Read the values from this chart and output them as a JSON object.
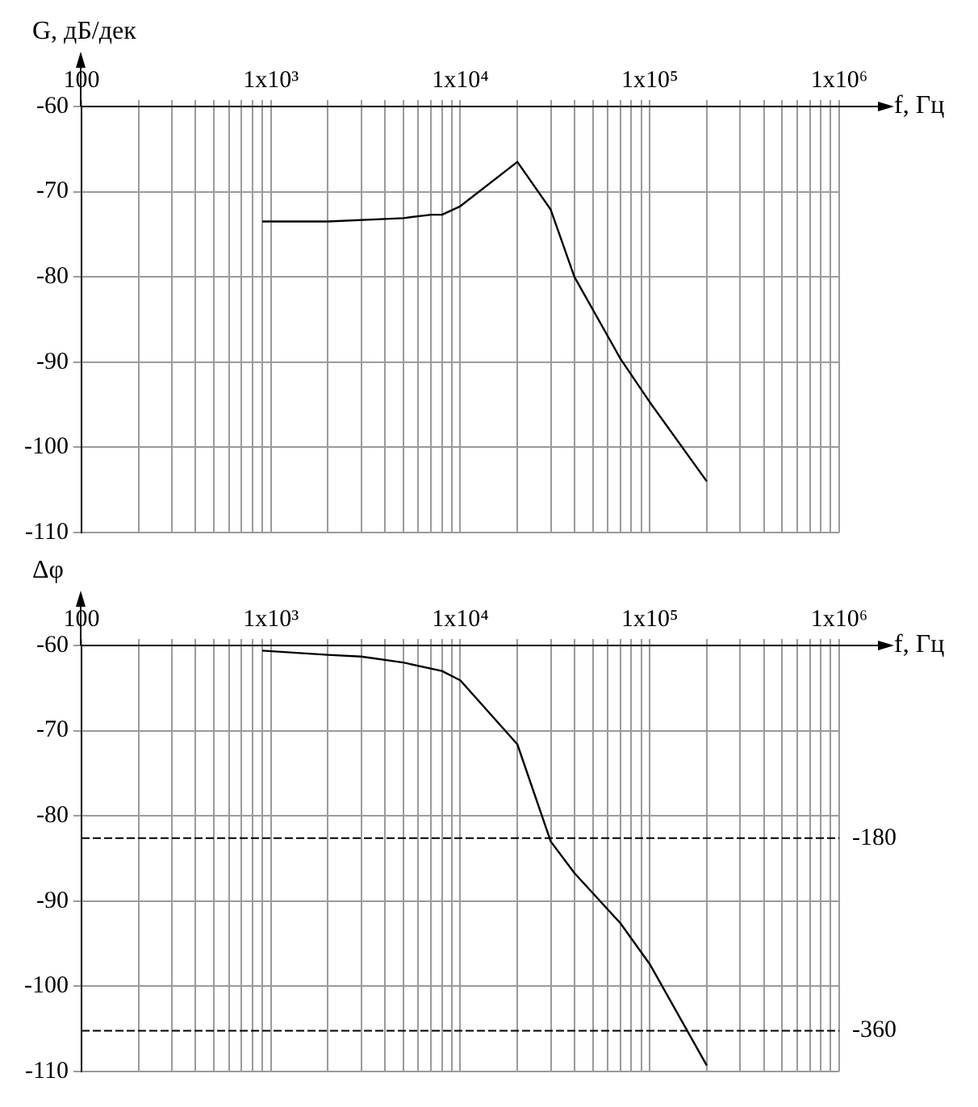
{
  "chart_data": [
    {
      "type": "line",
      "ylabel": "G, дБ/дек",
      "xlabel": "f, Гц",
      "log": "x",
      "grid": true,
      "xlim": [
        100,
        1000000
      ],
      "ylim": [
        -110,
        -60
      ],
      "xticks": [
        {
          "value": 100,
          "label": "100"
        },
        {
          "value": 200,
          "label": null
        },
        {
          "value": 300,
          "label": null
        },
        {
          "value": 400,
          "label": null
        },
        {
          "value": 500,
          "label": null
        },
        {
          "value": 600,
          "label": null
        },
        {
          "value": 700,
          "label": null
        },
        {
          "value": 800,
          "label": null
        },
        {
          "value": 900,
          "label": null
        },
        {
          "value": 1000,
          "label": "1x10³"
        },
        {
          "value": 2000,
          "label": null
        },
        {
          "value": 3000,
          "label": null
        },
        {
          "value": 4000,
          "label": null
        },
        {
          "value": 5000,
          "label": null
        },
        {
          "value": 6000,
          "label": null
        },
        {
          "value": 7000,
          "label": null
        },
        {
          "value": 8000,
          "label": null
        },
        {
          "value": 9000,
          "label": null
        },
        {
          "value": 10000,
          "label": "1x10⁴"
        },
        {
          "value": 20000,
          "label": null
        },
        {
          "value": 30000,
          "label": null
        },
        {
          "value": 40000,
          "label": null
        },
        {
          "value": 50000,
          "label": null
        },
        {
          "value": 60000,
          "label": null
        },
        {
          "value": 70000,
          "label": null
        },
        {
          "value": 80000,
          "label": null
        },
        {
          "value": 90000,
          "label": null
        },
        {
          "value": 100000,
          "label": "1x10⁵"
        },
        {
          "value": 200000,
          "label": null
        },
        {
          "value": 300000,
          "label": null
        },
        {
          "value": 400000,
          "label": null
        },
        {
          "value": 500000,
          "label": null
        },
        {
          "value": 600000,
          "label": null
        },
        {
          "value": 700000,
          "label": null
        },
        {
          "value": 800000,
          "label": null
        },
        {
          "value": 900000,
          "label": null
        },
        {
          "value": 1000000,
          "label": "1x10⁶"
        }
      ],
      "yticks": [
        -110,
        -100,
        -90,
        -80,
        -70,
        -60
      ],
      "x": [
        900,
        2000,
        5000,
        7000,
        8000,
        10000,
        20000,
        30000,
        40000,
        70000,
        100000,
        200000
      ],
      "series": [
        {
          "color": "#000000",
          "values": [
            -73.5,
            -73.5,
            -73.1,
            -72.7,
            -72.7,
            -71.7,
            -66.5,
            -72.1,
            -80,
            -89.6,
            -94.7,
            -104
          ]
        }
      ]
    },
    {
      "type": "line",
      "ylabel": "Δφ",
      "xlabel": "f, Гц",
      "log": "x",
      "grid": true,
      "xlim": [
        100,
        1000000
      ],
      "ylim": [
        -110,
        -60
      ],
      "xticks": [
        {
          "value": 100,
          "label": "100"
        },
        {
          "value": 200,
          "label": null
        },
        {
          "value": 300,
          "label": null
        },
        {
          "value": 400,
          "label": null
        },
        {
          "value": 500,
          "label": null
        },
        {
          "value": 600,
          "label": null
        },
        {
          "value": 700,
          "label": null
        },
        {
          "value": 800,
          "label": null
        },
        {
          "value": 900,
          "label": null
        },
        {
          "value": 1000,
          "label": "1x10³"
        },
        {
          "value": 2000,
          "label": null
        },
        {
          "value": 3000,
          "label": null
        },
        {
          "value": 4000,
          "label": null
        },
        {
          "value": 5000,
          "label": null
        },
        {
          "value": 6000,
          "label": null
        },
        {
          "value": 7000,
          "label": null
        },
        {
          "value": 8000,
          "label": null
        },
        {
          "value": 9000,
          "label": null
        },
        {
          "value": 10000,
          "label": "1x10⁴"
        },
        {
          "value": 20000,
          "label": null
        },
        {
          "value": 30000,
          "label": null
        },
        {
          "value": 40000,
          "label": null
        },
        {
          "value": 50000,
          "label": null
        },
        {
          "value": 60000,
          "label": null
        },
        {
          "value": 70000,
          "label": null
        },
        {
          "value": 80000,
          "label": null
        },
        {
          "value": 90000,
          "label": null
        },
        {
          "value": 100000,
          "label": "1x10⁵"
        },
        {
          "value": 200000,
          "label": null
        },
        {
          "value": 300000,
          "label": null
        },
        {
          "value": 400000,
          "label": null
        },
        {
          "value": 500000,
          "label": null
        },
        {
          "value": 600000,
          "label": null
        },
        {
          "value": 700000,
          "label": null
        },
        {
          "value": 800000,
          "label": null
        },
        {
          "value": 900000,
          "label": null
        },
        {
          "value": 1000000,
          "label": "1x10⁶"
        }
      ],
      "yticks": [
        -110,
        -100,
        -90,
        -80,
        -70,
        -60
      ],
      "x": [
        900,
        2000,
        3000,
        5000,
        8000,
        10000,
        20000,
        30000,
        40000,
        70000,
        100000,
        200000
      ],
      "series": [
        {
          "color": "#000000",
          "values": [
            -60.6,
            -61.1,
            -61.3,
            -62,
            -63,
            -64.1,
            -71.6,
            -83,
            -86.7,
            -92.6,
            -97.4,
            -109.3
          ]
        }
      ],
      "y2lim": [
        -398,
        0
      ],
      "ref_lines": [
        {
          "axis": "y2",
          "value": -180,
          "label": "-180",
          "color": "#000000",
          "line_style": "dashed"
        },
        {
          "axis": "y2",
          "value": -360,
          "label": "-360",
          "color": "#000000",
          "line_style": "dashed"
        }
      ]
    }
  ]
}
